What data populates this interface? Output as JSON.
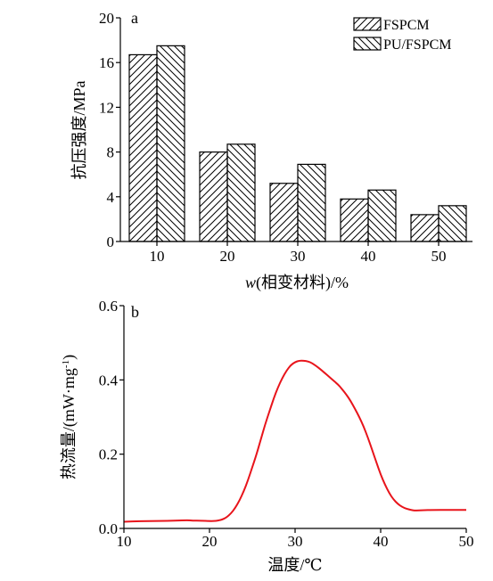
{
  "chart_data": [
    {
      "panel": "a",
      "type": "bar",
      "categories": [
        "10",
        "20",
        "30",
        "40",
        "50"
      ],
      "series": [
        {
          "name": "FSPCM",
          "values": [
            16.7,
            8.0,
            5.2,
            3.8,
            2.4
          ],
          "pattern": "hatch-forward"
        },
        {
          "name": "PU/FSPCM",
          "values": [
            17.5,
            8.7,
            6.9,
            4.6,
            3.2
          ],
          "pattern": "hatch-back"
        }
      ],
      "xlabel_var": "w",
      "xlabel_rest": "(相变材料)/%",
      "ylabel": "抗压强度/MPa",
      "ylim": [
        0,
        20
      ],
      "yticks": [
        0,
        4,
        8,
        12,
        16,
        20
      ],
      "legend": "top-right",
      "grid": false
    },
    {
      "panel": "b",
      "type": "line",
      "series": [
        {
          "name": "",
          "color": "#e8141b",
          "x": [
            10,
            12,
            14,
            16,
            17.5,
            18,
            19,
            20,
            20.5,
            21,
            21.5,
            22,
            22.5,
            23,
            23.5,
            24,
            24.5,
            25,
            25.5,
            26,
            26.5,
            27,
            27.5,
            28,
            28.5,
            29,
            29.5,
            30,
            30.5,
            31,
            31.5,
            32,
            32.5,
            33,
            33.5,
            34,
            34.5,
            35,
            35.5,
            36,
            36.5,
            37,
            37.5,
            38,
            38.5,
            39,
            39.5,
            40,
            40.5,
            41,
            41.5,
            42,
            42.5,
            43,
            43.5,
            44,
            45,
            46,
            48,
            50
          ],
          "y": [
            0.018,
            0.02,
            0.02,
            0.021,
            0.022,
            0.021,
            0.021,
            0.02,
            0.02,
            0.021,
            0.024,
            0.03,
            0.04,
            0.055,
            0.075,
            0.1,
            0.13,
            0.165,
            0.2,
            0.24,
            0.28,
            0.315,
            0.35,
            0.38,
            0.405,
            0.425,
            0.44,
            0.448,
            0.452,
            0.452,
            0.45,
            0.445,
            0.437,
            0.428,
            0.418,
            0.408,
            0.398,
            0.388,
            0.375,
            0.36,
            0.343,
            0.322,
            0.3,
            0.275,
            0.245,
            0.212,
            0.178,
            0.145,
            0.118,
            0.095,
            0.078,
            0.066,
            0.058,
            0.053,
            0.05,
            0.048,
            0.049,
            0.05,
            0.05,
            0.05
          ]
        }
      ],
      "xlabel": "温度/℃",
      "ylabel_main": "热流量/(mW·mg",
      "ylabel_sup": "-1",
      "ylabel_end": ")",
      "xlim": [
        10,
        50
      ],
      "ylim": [
        0,
        0.6
      ],
      "xticks": [
        10,
        20,
        30,
        40,
        50
      ],
      "yticks": [
        "0.0",
        "0.2",
        "0.4",
        "0.6"
      ],
      "grid": false
    }
  ]
}
